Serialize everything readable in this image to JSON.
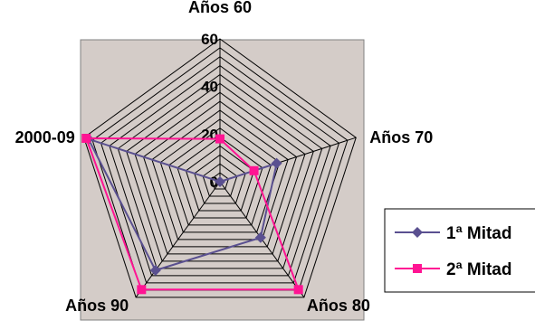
{
  "chart_data": {
    "type": "radar",
    "categories": [
      "Años 60",
      "Años 70",
      "Años 80",
      "Años 90",
      "2000-09"
    ],
    "series": [
      {
        "name": "1ª Mitad",
        "color": "#5a5090",
        "marker": "diamond",
        "values": [
          0,
          25,
          29,
          46,
          58
        ]
      },
      {
        "name": "2ª Mitad",
        "color": "#ff1493",
        "marker": "square",
        "values": [
          18,
          15,
          56,
          56,
          59
        ]
      }
    ],
    "rlim": [
      0,
      60
    ],
    "ticks": [
      0,
      20,
      40,
      60
    ],
    "tick_labels": [
      "0",
      "20",
      "40",
      "60"
    ],
    "grid_step": 3.75,
    "plot_background": "#d4ccc8",
    "grid_color": "#000000",
    "legend_position": "right"
  }
}
